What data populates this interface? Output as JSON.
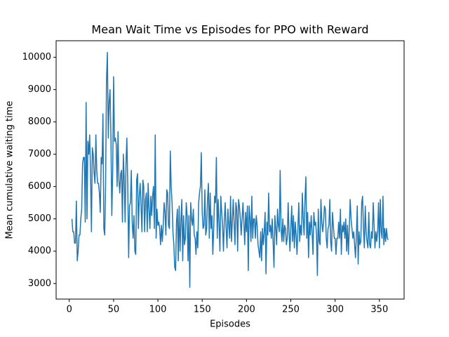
{
  "chart_data": {
    "type": "line",
    "title": "Mean Wait Time vs Episodes for PPO with Reward",
    "x_label": "Episodes",
    "y_label": "Mean cumulative waiting time",
    "color": "#1f77b4",
    "xlim": [
      -14.85,
      377.85
    ],
    "ylim": [
      2517,
      10513
    ],
    "xticks": [
      0,
      50,
      100,
      150,
      200,
      250,
      300,
      350
    ],
    "yticks": [
      3000,
      4000,
      5000,
      6000,
      7000,
      8000,
      9000,
      10000
    ],
    "x": [
      3,
      4,
      5,
      6,
      7,
      8,
      9,
      10,
      11,
      12,
      13,
      14,
      15,
      16,
      17,
      18,
      19,
      20,
      21,
      22,
      23,
      24,
      25,
      26,
      27,
      28,
      29,
      30,
      31,
      32,
      33,
      34,
      35,
      36,
      37,
      38,
      39,
      40,
      41,
      42,
      43,
      44,
      45,
      46,
      47,
      48,
      49,
      50,
      51,
      52,
      53,
      54,
      55,
      56,
      57,
      58,
      59,
      60,
      61,
      62,
      63,
      64,
      65,
      66,
      67,
      68,
      69,
      70,
      71,
      72,
      73,
      74,
      75,
      76,
      77,
      78,
      79,
      80,
      81,
      82,
      83,
      84,
      85,
      86,
      87,
      88,
      89,
      90,
      91,
      92,
      93,
      94,
      95,
      96,
      97,
      98,
      99,
      100,
      101,
      102,
      103,
      104,
      105,
      106,
      107,
      108,
      109,
      110,
      111,
      112,
      113,
      114,
      115,
      116,
      117,
      118,
      119,
      120,
      121,
      122,
      123,
      124,
      125,
      126,
      127,
      128,
      129,
      130,
      131,
      132,
      133,
      134,
      135,
      136,
      137,
      138,
      139,
      140,
      141,
      142,
      143,
      144,
      145,
      146,
      147,
      148,
      149,
      150,
      151,
      152,
      153,
      154,
      155,
      156,
      157,
      158,
      159,
      160,
      161,
      162,
      163,
      164,
      165,
      166,
      167,
      168,
      169,
      170,
      171,
      172,
      173,
      174,
      175,
      176,
      177,
      178,
      179,
      180,
      181,
      182,
      183,
      184,
      185,
      186,
      187,
      188,
      189,
      190,
      191,
      192,
      193,
      194,
      195,
      196,
      197,
      198,
      199,
      200,
      201,
      202,
      203,
      204,
      205,
      206,
      207,
      208,
      209,
      210,
      211,
      212,
      213,
      214,
      215,
      216,
      217,
      218,
      219,
      220,
      221,
      222,
      223,
      224,
      225,
      226,
      227,
      228,
      229,
      230,
      231,
      232,
      233,
      234,
      235,
      236,
      237,
      238,
      239,
      240,
      241,
      242,
      243,
      244,
      245,
      246,
      247,
      248,
      249,
      250,
      251,
      252,
      253,
      254,
      255,
      256,
      257,
      258,
      259,
      260,
      261,
      262,
      263,
      264,
      265,
      266,
      267,
      268,
      269,
      270,
      271,
      272,
      273,
      274,
      275,
      276,
      277,
      278,
      279,
      280,
      281,
      282,
      283,
      284,
      285,
      286,
      287,
      288,
      289,
      290,
      291,
      292,
      293,
      294,
      295,
      296,
      297,
      298,
      299,
      300,
      301,
      302,
      303,
      304,
      305,
      306,
      307,
      308,
      309,
      310,
      311,
      312,
      313,
      314,
      315,
      316,
      317,
      318,
      319,
      320,
      321,
      322,
      323,
      324,
      325,
      326,
      327,
      328,
      329,
      330,
      331,
      332,
      333,
      334,
      335,
      336,
      337,
      338,
      339,
      340,
      341,
      342,
      343,
      344,
      345,
      346,
      347,
      348,
      349,
      350,
      351,
      352,
      353,
      354,
      355,
      356,
      357,
      358,
      359,
      360
    ],
    "values": [
      5000,
      4600,
      4600,
      4250,
      4250,
      5550,
      3700,
      4000,
      4500,
      4500,
      5000,
      5300,
      6700,
      6900,
      6900,
      4900,
      8600,
      5000,
      7400,
      7000,
      7600,
      6400,
      4600,
      7200,
      7000,
      6400,
      6100,
      7600,
      6500,
      6100,
      6100,
      5800,
      5200,
      6900,
      6700,
      8250,
      4700,
      4500,
      6100,
      9300,
      10150,
      7500,
      8600,
      9000,
      7500,
      5100,
      6500,
      9400,
      7400,
      7500,
      7300,
      6000,
      7700,
      6200,
      5800,
      6400,
      6500,
      4900,
      7000,
      6200,
      4900,
      6700,
      7500,
      6000,
      3800,
      5400,
      5500,
      6500,
      4900,
      4400,
      5100,
      4000,
      3900,
      6200,
      6400,
      4700,
      5700,
      6100,
      5400,
      4600,
      6200,
      6000,
      4600,
      5600,
      5800,
      4600,
      6100,
      5300,
      4700,
      5700,
      5100,
      5700,
      6000,
      4700,
      7600,
      4400,
      5300,
      4800,
      4900,
      4700,
      4200,
      4800,
      4300,
      4800,
      5500,
      5200,
      4500,
      5900,
      5800,
      4800,
      4700,
      7100,
      6000,
      5500,
      4600,
      4200,
      3500,
      3400,
      4900,
      5300,
      3700,
      5400,
      4000,
      4900,
      5600,
      3700,
      5100,
      4200,
      4400,
      5500,
      5100,
      3700,
      5100,
      2880,
      5500,
      5000,
      4800,
      5300,
      4500,
      4400,
      3900,
      4600,
      4100,
      5500,
      5800,
      6000,
      7050,
      5200,
      4700,
      4800,
      5900,
      4500,
      4700,
      5600,
      6100,
      4400,
      5800,
      4700,
      5100,
      3900,
      4700,
      5700,
      5500,
      6900,
      4400,
      5600,
      4900,
      4000,
      5700,
      5200,
      4800,
      4000,
      5000,
      5500,
      4700,
      4100,
      5300,
      4800,
      4400,
      5700,
      4300,
      4900,
      5600,
      4900,
      4200,
      5500,
      5300,
      4000,
      5600,
      5400,
      5000,
      4500,
      5000,
      5500,
      4900,
      4200,
      5200,
      4600,
      5400,
      3400,
      5400,
      5000,
      4300,
      5700,
      4400,
      5000,
      5000,
      4400,
      5100,
      4800,
      4200,
      4000,
      3800,
      4600,
      3700,
      4700,
      4200,
      4600,
      5200,
      3300,
      4900,
      4500,
      5800,
      4600,
      4800,
      4400,
      5000,
      4300,
      3500,
      5100,
      4700,
      4200,
      5300,
      4800,
      4600,
      6500,
      4700,
      4300,
      5000,
      4300,
      4800,
      4700,
      4200,
      4400,
      5500,
      4600,
      4000,
      4700,
      5400,
      4300,
      5100,
      4100,
      4900,
      4500,
      3900,
      4700,
      5500,
      4300,
      4800,
      4500,
      5800,
      5000,
      4500,
      5600,
      6300,
      4400,
      5200,
      3800,
      4900,
      4500,
      5100,
      4600,
      3900,
      5200,
      4800,
      4900,
      4500,
      3250,
      5300,
      4300,
      4200,
      5600,
      4900,
      4600,
      4900,
      5400,
      5300,
      4400,
      4100,
      4700,
      4800,
      5600,
      4300,
      4000,
      5200,
      4800,
      4400,
      4400,
      3900,
      4400,
      4400,
      4900,
      4400,
      5300,
      3900,
      4800,
      4600,
      4900,
      4400,
      5000,
      4000,
      4800,
      3900,
      4700,
      5600,
      5000,
      4700,
      4400,
      4600,
      4200,
      3800,
      4500,
      5400,
      3600,
      4600,
      4200,
      4300,
      5500,
      5700,
      4700,
      4100,
      5400,
      4600,
      4300,
      4100,
      5200,
      4200,
      4100,
      4600,
      4400,
      5500,
      4800,
      4100,
      4600,
      4300,
      4600,
      5500,
      4100,
      5600,
      4600,
      4400,
      5700,
      4200,
      4700,
      4300,
      4700,
      4400,
      4350
    ]
  }
}
